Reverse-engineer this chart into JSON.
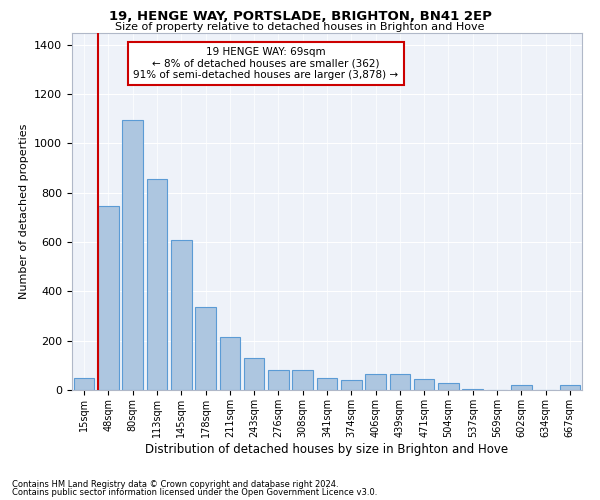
{
  "title1": "19, HENGE WAY, PORTSLADE, BRIGHTON, BN41 2EP",
  "title2": "Size of property relative to detached houses in Brighton and Hove",
  "xlabel": "Distribution of detached houses by size in Brighton and Hove",
  "ylabel": "Number of detached properties",
  "footnote1": "Contains HM Land Registry data © Crown copyright and database right 2024.",
  "footnote2": "Contains public sector information licensed under the Open Government Licence v3.0.",
  "annotation_line1": "19 HENGE WAY: 69sqm",
  "annotation_line2": "← 8% of detached houses are smaller (362)",
  "annotation_line3": "91% of semi-detached houses are larger (3,878) →",
  "bar_labels": [
    "15sqm",
    "48sqm",
    "80sqm",
    "113sqm",
    "145sqm",
    "178sqm",
    "211sqm",
    "243sqm",
    "276sqm",
    "308sqm",
    "341sqm",
    "374sqm",
    "406sqm",
    "439sqm",
    "471sqm",
    "504sqm",
    "537sqm",
    "569sqm",
    "602sqm",
    "634sqm",
    "667sqm"
  ],
  "bar_values": [
    50,
    745,
    1095,
    855,
    610,
    335,
    215,
    130,
    80,
    80,
    50,
    40,
    65,
    65,
    45,
    30,
    5,
    0,
    20,
    0,
    20
  ],
  "bar_color": "#adc6e0",
  "bar_edge_color": "#5b9bd5",
  "highlight_line_color": "#cc0000",
  "ylim": [
    0,
    1450
  ],
  "yticks": [
    0,
    200,
    400,
    600,
    800,
    1000,
    1200,
    1400
  ],
  "annotation_box_edge_color": "#cc0000",
  "annotation_box_facecolor": "white",
  "bg_color": "#eef2f9"
}
